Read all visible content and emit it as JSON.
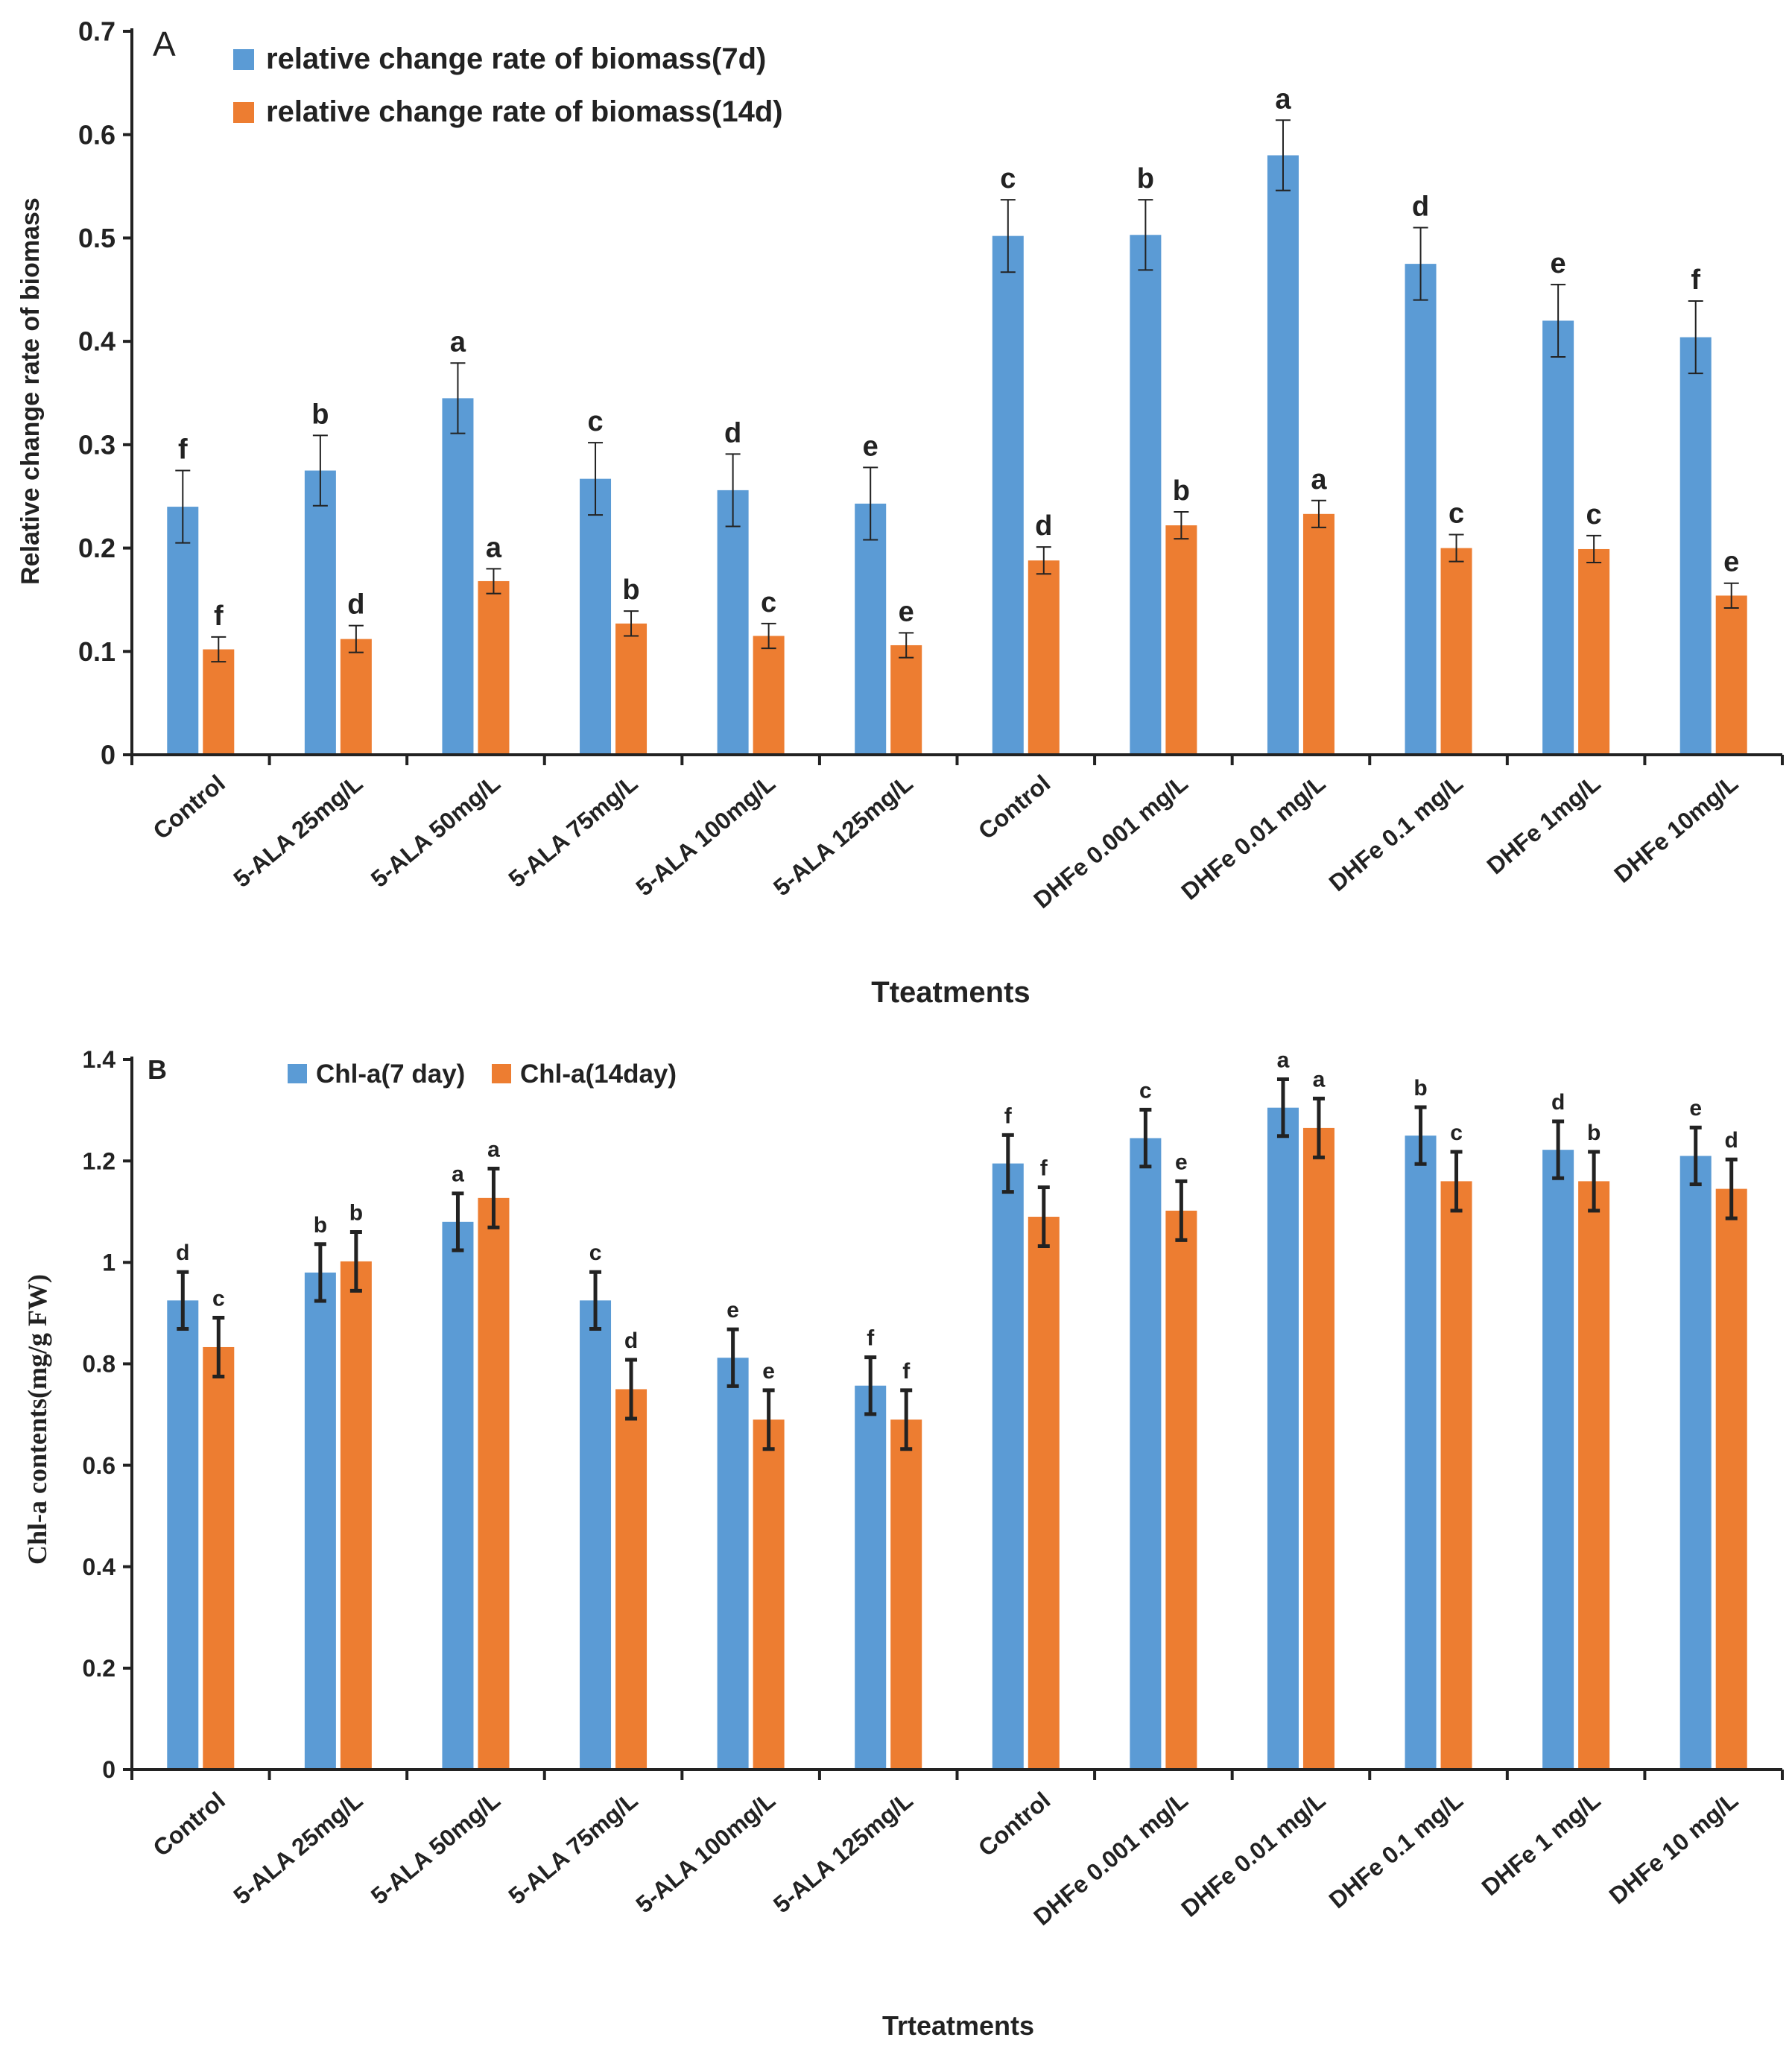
{
  "colors": {
    "series7": "#5b9bd5",
    "series14": "#ed7d31",
    "axis": "#222222"
  },
  "chart_data": [
    {
      "type": "bar",
      "panel": "A",
      "ylabel": "Relative change rate of biomass",
      "xlabel": "Tteatments",
      "ylim": [
        0,
        0.7
      ],
      "yticks": [
        "0",
        "0.1",
        "0.2",
        "0.3",
        "0.4",
        "0.5",
        "0.6",
        "0.7"
      ],
      "grid": false,
      "legend_position": "top-left",
      "categories": [
        "Control",
        "5-ALA 25mg/L",
        "5-ALA 50mg/L",
        "5-ALA 75mg/L",
        "5-ALA 100mg/L",
        "5-ALA 125mg/L",
        "Control",
        "DHFe 0.001 mg/L",
        "DHFe 0.01 mg/L",
        "DHFe 0.1 mg/L",
        "DHFe 1mg/L",
        "DHFe 10mg/L"
      ],
      "series": [
        {
          "name": "relative change rate of biomass(7d)",
          "values": [
            0.24,
            0.275,
            0.345,
            0.267,
            0.256,
            0.243,
            0.502,
            0.503,
            0.58,
            0.475,
            0.42,
            0.404
          ],
          "errors": [
            0.035,
            0.034,
            0.034,
            0.035,
            0.035,
            0.035,
            0.035,
            0.034,
            0.034,
            0.035,
            0.035,
            0.035
          ],
          "labels": [
            "f",
            "b",
            "a",
            "c",
            "d",
            "e",
            "c",
            "b",
            "a",
            "d",
            "e",
            "f"
          ]
        },
        {
          "name": "relative change rate of biomass(14d)",
          "values": [
            0.102,
            0.112,
            0.168,
            0.127,
            0.115,
            0.106,
            0.188,
            0.222,
            0.233,
            0.2,
            0.199,
            0.154
          ],
          "errors": [
            0.012,
            0.013,
            0.012,
            0.012,
            0.012,
            0.012,
            0.013,
            0.013,
            0.013,
            0.013,
            0.013,
            0.012
          ],
          "labels": [
            "f",
            "d",
            "a",
            "b",
            "c",
            "e",
            "d",
            "b",
            "a",
            "c",
            "c",
            "e"
          ]
        }
      ]
    },
    {
      "type": "bar",
      "panel": "B",
      "ylabel": "Chl-a contents(mg/g FW)",
      "xlabel": "Trteatments",
      "ylim": [
        0,
        1.4
      ],
      "yticks": [
        "0",
        "0.2",
        "0.4",
        "0.6",
        "0.8",
        "1",
        "1.2",
        "1.4"
      ],
      "grid": false,
      "legend_position": "top-left",
      "categories": [
        "Control",
        "5-ALA 25mg/L",
        "5-ALA 50mg/L",
        "5-ALA 75mg/L",
        "5-ALA 100mg/L",
        "5-ALA 125mg/L",
        "Control",
        "DHFe 0.001 mg/L",
        "DHFe 0.01 mg/L",
        "DHFe 0.1 mg/L",
        "DHFe 1 mg/L",
        "DHFe 10 mg/L"
      ],
      "series": [
        {
          "name": "Chl-a(7 day)",
          "values": [
            0.925,
            0.98,
            1.08,
            0.925,
            0.812,
            0.757,
            1.195,
            1.245,
            1.305,
            1.25,
            1.222,
            1.21
          ],
          "errors": [
            0.056,
            0.056,
            0.056,
            0.056,
            0.056,
            0.056,
            0.056,
            0.056,
            0.056,
            0.056,
            0.056,
            0.056
          ],
          "labels": [
            "d",
            "b",
            "a",
            "c",
            "e",
            "f",
            "f",
            "c",
            "a",
            "b",
            "d",
            "e"
          ]
        },
        {
          "name": "Chl-a(14day)",
          "values": [
            0.833,
            1.002,
            1.127,
            0.75,
            0.69,
            0.69,
            1.09,
            1.102,
            1.265,
            1.16,
            1.16,
            1.145
          ],
          "errors": [
            0.058,
            0.058,
            0.058,
            0.058,
            0.058,
            0.058,
            0.058,
            0.058,
            0.058,
            0.058,
            0.058,
            0.058
          ],
          "labels": [
            "c",
            "b",
            "a",
            "d",
            "e",
            "f",
            "f",
            "e",
            "a",
            "c",
            "b",
            "d"
          ]
        }
      ]
    }
  ]
}
